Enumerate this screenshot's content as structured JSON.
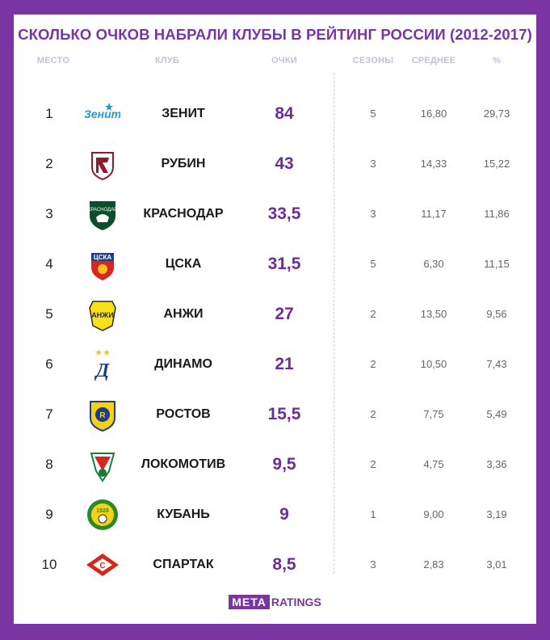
{
  "title": "СКОЛЬКО ОЧКОВ НАБРАЛИ КЛУБЫ В РЕЙТИНГ РОССИИ (2012-2017)",
  "columns": {
    "rank": "МЕСТО",
    "club": "КЛУБ",
    "points": "ОЧКИ",
    "seasons": "СЕЗОНЫ",
    "avg": "СРЕДНЕЕ",
    "pct": "%"
  },
  "brand": {
    "left": "META",
    "right": "RATINGS"
  },
  "colors": {
    "background": "#7a35a3",
    "accent": "#6a2e98",
    "header_text": "#c7bfd8"
  },
  "chart_data": {
    "type": "table",
    "title": "СКОЛЬКО ОЧКОВ НАБРАЛИ КЛУБЫ В РЕЙТИНГ РОССИИ (2012-2017)",
    "columns": [
      "МЕСТО",
      "КЛУБ",
      "ОЧКИ",
      "СЕЗОНЫ",
      "СРЕДНЕЕ",
      "%"
    ],
    "rows": [
      {
        "rank": "1",
        "club": "ЗЕНИТ",
        "points": "84",
        "seasons": "5",
        "avg": "16,80",
        "pct": "29,73",
        "logo": "zenit-logo-icon"
      },
      {
        "rank": "2",
        "club": "РУБИН",
        "points": "43",
        "seasons": "3",
        "avg": "14,33",
        "pct": "15,22",
        "logo": "rubin-logo-icon"
      },
      {
        "rank": "3",
        "club": "КРАСНОДАР",
        "points": "33,5",
        "seasons": "3",
        "avg": "11,17",
        "pct": "11,86",
        "logo": "krasnodar-logo-icon"
      },
      {
        "rank": "4",
        "club": "ЦСКА",
        "points": "31,5",
        "seasons": "5",
        "avg": "6,30",
        "pct": "11,15",
        "logo": "cska-logo-icon"
      },
      {
        "rank": "5",
        "club": "АНЖИ",
        "points": "27",
        "seasons": "2",
        "avg": "13,50",
        "pct": "9,56",
        "logo": "anzhi-logo-icon"
      },
      {
        "rank": "6",
        "club": "ДИНАМО",
        "points": "21",
        "seasons": "2",
        "avg": "10,50",
        "pct": "7,43",
        "logo": "dinamo-logo-icon"
      },
      {
        "rank": "7",
        "club": "РОСТОВ",
        "points": "15,5",
        "seasons": "2",
        "avg": "7,75",
        "pct": "5,49",
        "logo": "rostov-logo-icon"
      },
      {
        "rank": "8",
        "club": "ЛОКОМОТИВ",
        "points": "9,5",
        "seasons": "2",
        "avg": "4,75",
        "pct": "3,36",
        "logo": "lokomotiv-logo-icon"
      },
      {
        "rank": "9",
        "club": "КУБАНЬ",
        "points": "9",
        "seasons": "1",
        "avg": "9,00",
        "pct": "3,19",
        "logo": "kuban-logo-icon"
      },
      {
        "rank": "10",
        "club": "СПАРТАК",
        "points": "8,5",
        "seasons": "3",
        "avg": "2,83",
        "pct": "3,01",
        "logo": "spartak-logo-icon"
      }
    ]
  }
}
